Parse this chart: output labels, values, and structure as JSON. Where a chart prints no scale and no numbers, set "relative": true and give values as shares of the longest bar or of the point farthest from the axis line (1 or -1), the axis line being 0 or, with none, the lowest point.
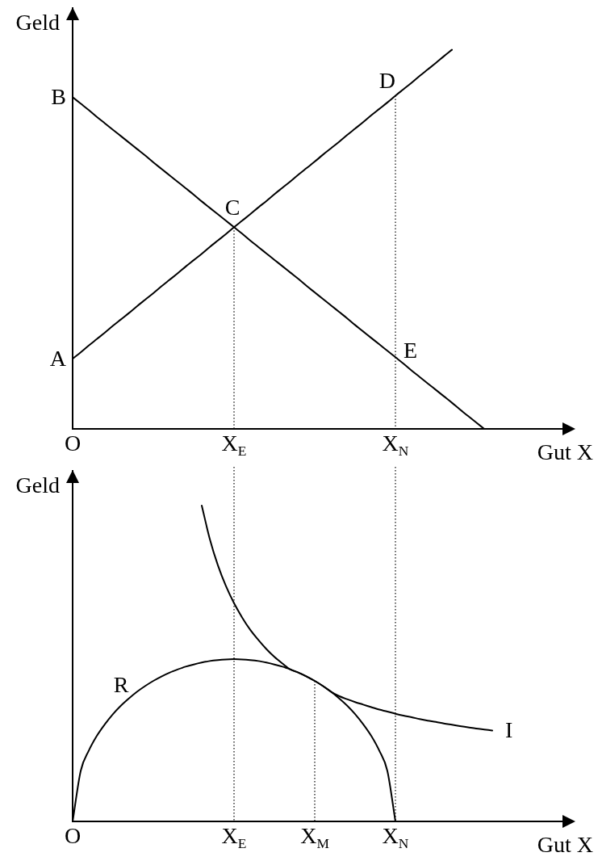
{
  "chart_data": [
    {
      "type": "line",
      "xlabel": "Gut X",
      "ylabel": "Geld",
      "relative": true,
      "categories": [
        "O",
        null,
        null,
        null,
        null,
        null,
        null,
        null,
        null,
        null,
        null,
        null,
        null,
        null,
        null,
        null,
        null,
        null,
        null,
        null,
        "X$_{E}$",
        null,
        null,
        null,
        null,
        null,
        null,
        null,
        null,
        null,
        null,
        null,
        null,
        null,
        null,
        null,
        null,
        null,
        null,
        null,
        "X$_{N}$",
        null,
        null,
        null,
        null,
        null,
        null,
        null,
        null,
        null,
        null,
        null,
        null,
        null,
        null,
        null,
        null,
        null,
        null,
        null,
        null,
        null,
        null
      ],
      "series": [
        {
          "color": "#000000",
          "values": [
            0.185,
            0.202,
            0.22,
            0.237,
            0.254,
            0.272,
            0.289,
            0.306,
            0.324,
            0.341,
            0.358,
            0.376,
            0.393,
            0.41,
            0.428,
            0.445,
            0.462,
            0.48,
            0.497,
            0.514,
            0.532,
            0.549,
            0.566,
            0.584,
            0.601,
            0.619,
            0.636,
            0.653,
            0.671,
            0.688,
            0.705,
            0.723,
            0.74,
            0.757,
            0.775,
            0.792,
            0.809,
            0.827,
            0.844,
            0.861,
            0.879,
            0.896,
            0.913,
            0.931,
            0.948,
            0.965,
            0.983,
            1,
            null,
            null,
            null,
            null,
            null,
            null,
            null,
            null,
            null,
            null,
            null,
            null,
            null,
            null,
            null
          ]
        },
        {
          "color": "#000000",
          "values": [
            0.875,
            0.858,
            0.841,
            0.823,
            0.806,
            0.789,
            0.772,
            0.755,
            0.738,
            0.721,
            0.703,
            0.686,
            0.669,
            0.652,
            0.635,
            0.618,
            0.6,
            0.583,
            0.566,
            0.549,
            0.532,
            0.515,
            0.497,
            0.48,
            0.463,
            0.446,
            0.429,
            0.412,
            0.395,
            0.377,
            0.36,
            0.343,
            0.326,
            0.309,
            0.292,
            0.274,
            0.257,
            0.24,
            0.223,
            0.206,
            0.189,
            0.172,
            0.154,
            0.137,
            0.12,
            0.103,
            0.086,
            0.069,
            0.051,
            0.034,
            0.017,
            0,
            null,
            null,
            null,
            null,
            null,
            null,
            null,
            null,
            null,
            null,
            null
          ]
        }
      ],
      "annotations": [
        {
          "text": "A",
          "x": "O",
          "y": 0.185
        },
        {
          "text": "B",
          "x": "O",
          "y": 0.875
        },
        {
          "text": "C",
          "x": "X$_{E}$",
          "y": 0.532
        },
        {
          "text": "D",
          "x": "X$_{N}$",
          "y": 0.879
        },
        {
          "text": "E",
          "x": "X$_{N}$",
          "y": 0.189
        }
      ],
      "ref_lines": [
        {
          "axis": "x",
          "value": "X$_{E}$",
          "color": "#000000",
          "line_style": "dotted"
        },
        {
          "axis": "x",
          "value": "X$_{N}$",
          "color": "#000000",
          "line_style": "dotted"
        }
      ]
    },
    {
      "type": "line",
      "xlabel": "Gut X",
      "ylabel": "Geld",
      "relative": true,
      "categories": [
        "O",
        null,
        null,
        null,
        null,
        null,
        null,
        null,
        null,
        null,
        null,
        null,
        null,
        null,
        null,
        null,
        null,
        null,
        null,
        null,
        "X$_{E}$",
        null,
        null,
        null,
        null,
        null,
        null,
        null,
        null,
        null,
        "X$_{M}$",
        null,
        null,
        null,
        null,
        null,
        null,
        null,
        null,
        null,
        "X$_{N}$",
        null,
        null,
        null,
        null,
        null,
        null,
        null,
        null,
        null,
        null,
        null,
        null,
        null,
        null,
        null,
        null,
        null,
        null,
        null,
        null,
        null,
        null
      ],
      "series": [
        {
          "name": "R",
          "color": "#000000",
          "values": [
            0,
            0.16,
            0.224,
            0.271,
            0.308,
            0.34,
            0.367,
            0.39,
            0.411,
            0.429,
            0.445,
            0.459,
            0.471,
            0.481,
            0.49,
            0.497,
            0.503,
            0.508,
            0.511,
            0.513,
            0.514,
            0.513,
            0.511,
            0.508,
            0.503,
            0.497,
            0.49,
            0.481,
            0.471,
            0.459,
            0.445,
            0.429,
            0.411,
            0.39,
            0.367,
            0.34,
            0.308,
            0.271,
            0.224,
            0.16,
            0,
            null,
            null,
            null,
            null,
            null,
            null,
            null,
            null,
            null,
            null,
            null,
            null,
            null,
            null,
            null,
            null,
            null,
            null,
            null,
            null,
            null,
            null
          ]
        },
        {
          "name": "I",
          "color": "#000000",
          "values": [
            null,
            null,
            null,
            null,
            null,
            null,
            null,
            null,
            null,
            null,
            null,
            null,
            null,
            null,
            null,
            null,
            1,
            0.894,
            0.811,
            0.745,
            0.691,
            0.646,
            0.607,
            0.575,
            0.546,
            0.521,
            0.5,
            0.481,
            0.471,
            0.459,
            0.445,
            0.429,
            0.411,
            0.397,
            0.387,
            0.378,
            0.37,
            0.362,
            0.354,
            0.348,
            0.341,
            0.335,
            0.33,
            0.324,
            0.319,
            0.315,
            0.31,
            0.306,
            0.302,
            0.298,
            0.294,
            0.291,
            0.288,
            null,
            null,
            null,
            null,
            null,
            null,
            null,
            null,
            null,
            null
          ]
        }
      ],
      "ref_lines": [
        {
          "axis": "x",
          "value": "X$_{E}$",
          "color": "#000000",
          "line_style": "dotted"
        },
        {
          "axis": "x",
          "value": "X$_{M}$",
          "color": "#000000",
          "line_style": "dotted"
        },
        {
          "axis": "x",
          "value": "X$_{N}$",
          "color": "#000000",
          "line_style": "dotted"
        }
      ]
    }
  ]
}
